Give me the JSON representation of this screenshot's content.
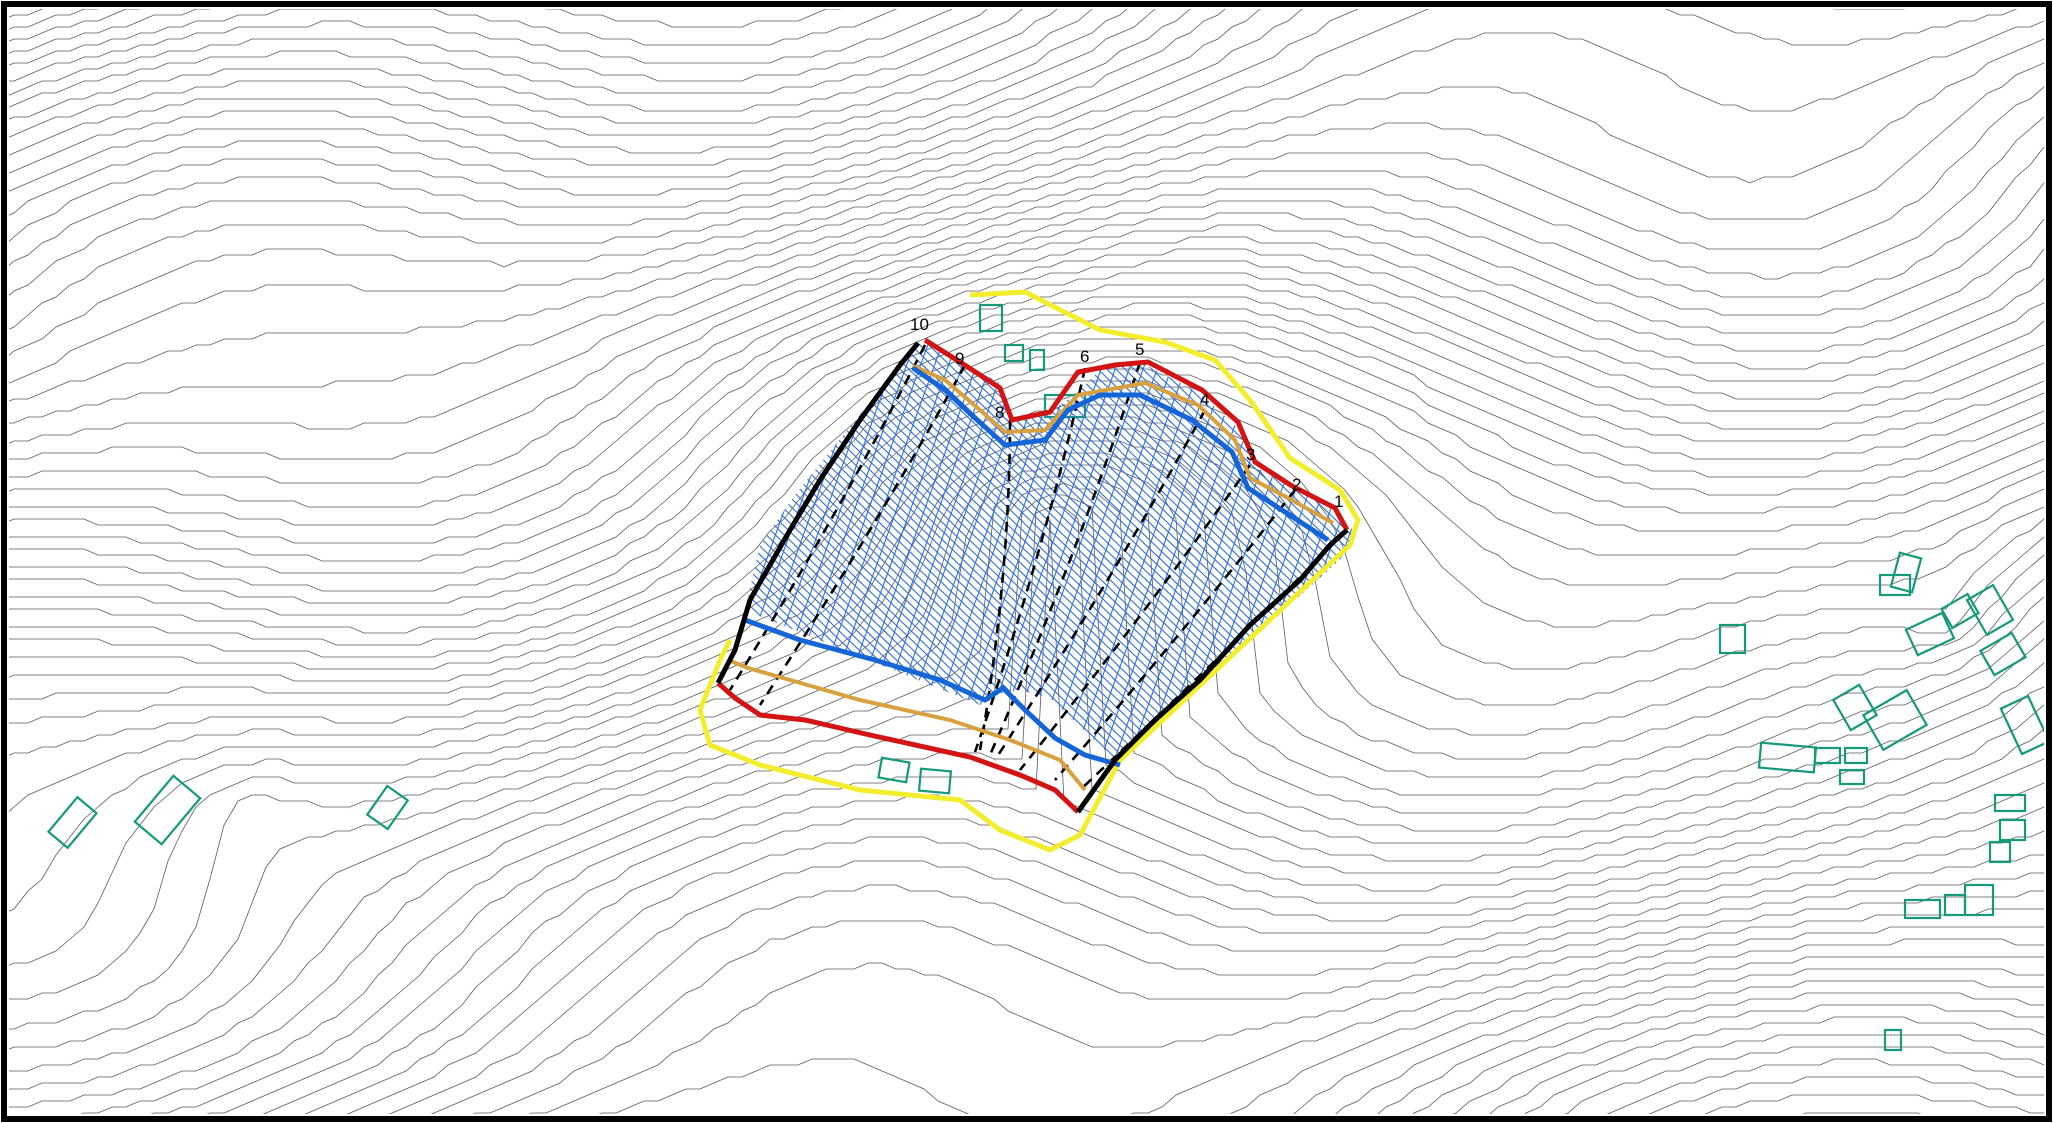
{
  "map": {
    "section_labels": [
      "1",
      "2",
      "3",
      "4",
      "5",
      "6",
      "8",
      "9",
      "10"
    ],
    "colors": {
      "frame": "#000000",
      "contours": "#5a5a5a",
      "site_boundary": "#f2ee2e",
      "crest_line": "#d21414",
      "berm_line": "#d9a040",
      "toe_line": "#1565d8",
      "hatch": "#2f6fd6",
      "buildings": "#149a7a",
      "sections": "#000000"
    }
  }
}
